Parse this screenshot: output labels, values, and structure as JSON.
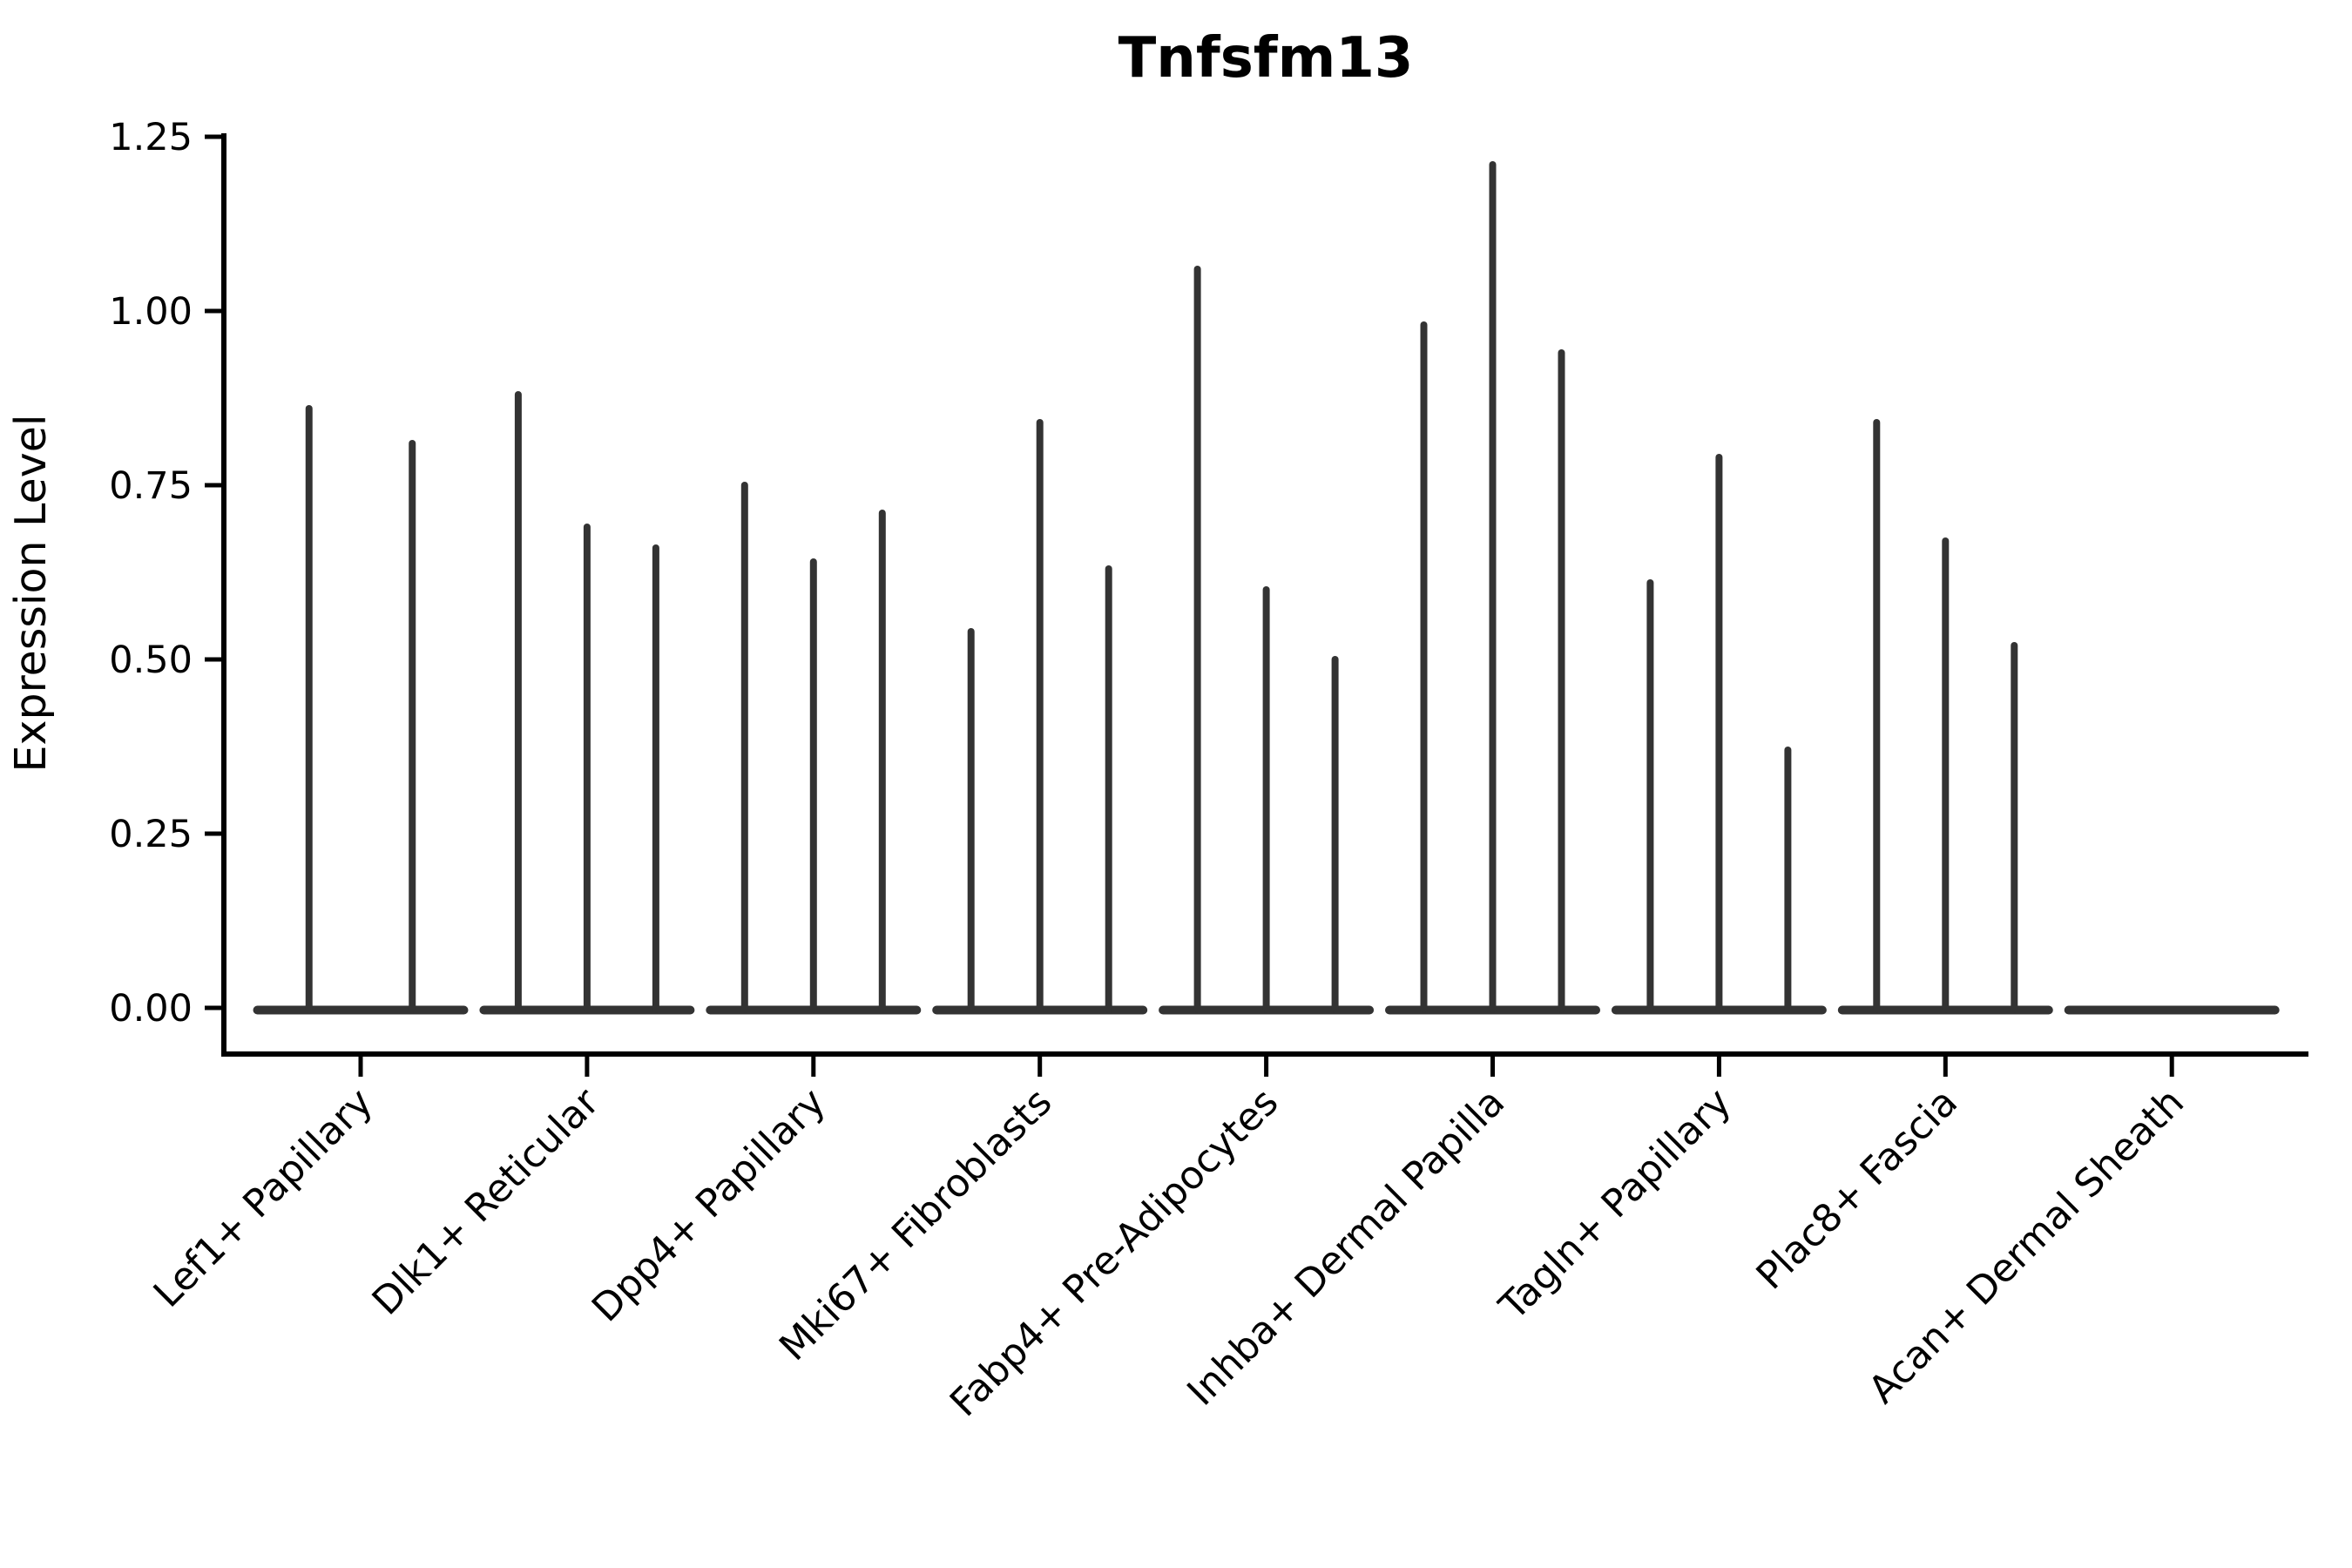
{
  "title": "Tnfsfm13",
  "axes": {
    "y_label": "Expression Level",
    "y_ticks": [
      "0.00",
      "0.25",
      "0.50",
      "0.75",
      "1.00",
      "1.25"
    ],
    "x_tick_labels": [
      "Lef1+ Papillary",
      "Dlk1+ Reticular",
      "Dpp4+ Papillary",
      "Mki67+ Fibroblasts",
      "Fabp4+ Pre-Adipocytes",
      "Inhba+ Dermal Papilla",
      "Tagln+ Papillary",
      "Plac8+ Fascia",
      "Acan+ Dermal Sheath"
    ]
  },
  "chart_data": {
    "type": "violin",
    "title": "Tnfsfm13",
    "xlabel": "",
    "ylabel": "Expression Level",
    "ylim": [
      -0.07,
      1.27
    ],
    "grid": false,
    "legend": "none",
    "categories": [
      "Lef1+ Papillary",
      "Dlk1+ Reticular",
      "Dpp4+ Papillary",
      "Mki67+ Fibroblasts",
      "Fabp4+ Pre-Adipocytes",
      "Inhba+ Dermal Papilla",
      "Tagln+ Papillary",
      "Plac8+ Fascia",
      "Acan+ Dermal Sheath"
    ],
    "series": [
      {
        "category": "Lef1+ Papillary",
        "violin_max_values": [
          0.86,
          0.81
        ]
      },
      {
        "category": "Dlk1+ Reticular",
        "violin_max_values": [
          0.88,
          0.69,
          0.66
        ]
      },
      {
        "category": "Dpp4+ Papillary",
        "violin_max_values": [
          0.75,
          0.64,
          0.71
        ]
      },
      {
        "category": "Mki67+ Fibroblasts",
        "violin_max_values": [
          0.54,
          0.84,
          0.63
        ]
      },
      {
        "category": "Fabp4+ Pre-Adipocytes",
        "violin_max_values": [
          1.06,
          0.6,
          0.5
        ]
      },
      {
        "category": "Inhba+ Dermal Papilla",
        "violin_max_values": [
          0.98,
          1.21,
          0.94
        ]
      },
      {
        "category": "Tagln+ Papillary",
        "violin_max_values": [
          0.61,
          0.79,
          0.37
        ]
      },
      {
        "category": "Plac8+ Fascia",
        "violin_max_values": [
          0.84,
          0.67,
          0.52
        ]
      },
      {
        "category": "Acan+ Dermal Sheath",
        "violin_max_values": []
      }
    ],
    "notes": "Each violin collapses to a flat baseline at 0 with a thin density spike reaching the listed maximum expression value; last category is entirely at 0."
  },
  "style": {
    "violin_color": "#333333",
    "axis_color": "#000000",
    "text_color": "#000000",
    "background": "#ffffff"
  }
}
